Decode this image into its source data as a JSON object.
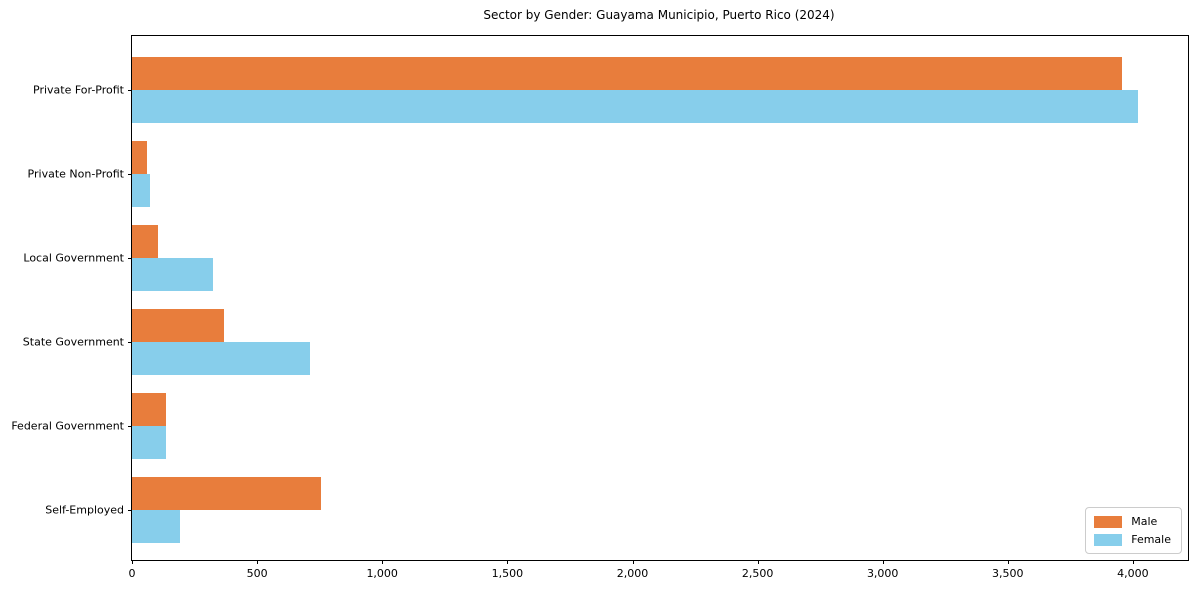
{
  "chart_data": {
    "type": "bar",
    "orientation": "horizontal",
    "title": "Sector by Gender: Guayama Municipio, Puerto Rico (2024)",
    "categories": [
      "Private For-Profit",
      "Private Non-Profit",
      "Local Government",
      "State Government",
      "Federal Government",
      "Self-Employed"
    ],
    "series": [
      {
        "name": "Male",
        "color": "#E87D3C",
        "values": [
          3956,
          60,
          105,
          367,
          137,
          755
        ]
      },
      {
        "name": "Female",
        "color": "#87CEEB",
        "values": [
          4019,
          72,
          325,
          710,
          135,
          193
        ]
      }
    ],
    "xlabel": "",
    "ylabel": "",
    "xlim": [
      0,
      4220
    ],
    "x_ticks": [
      0,
      500,
      1000,
      1500,
      2000,
      2500,
      3000,
      3500,
      4000
    ],
    "x_tick_labels": [
      "0",
      "500",
      "1,000",
      "1,500",
      "2,000",
      "2,500",
      "3,000",
      "3,500",
      "4,000"
    ],
    "grid": false,
    "legend_position": "lower right",
    "background_color": "#ffffff",
    "axis_color": "#000000"
  }
}
